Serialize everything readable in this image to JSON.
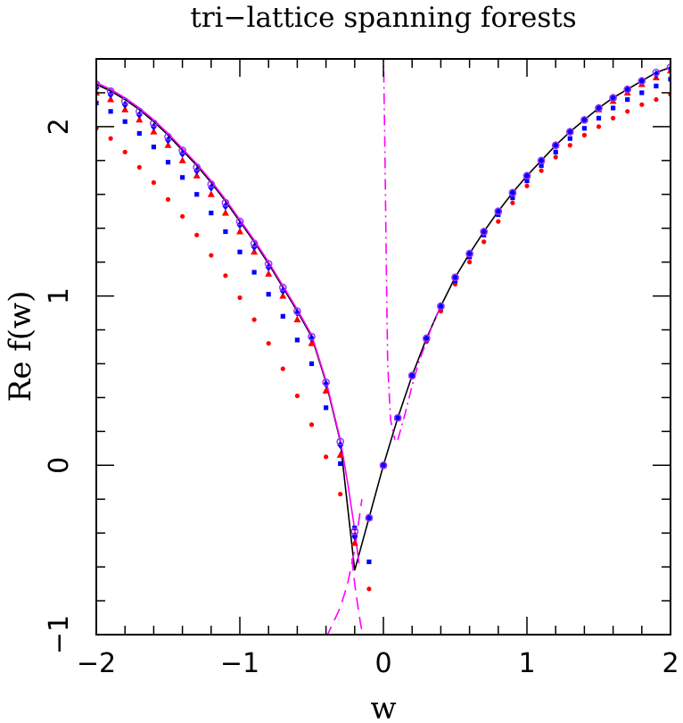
{
  "chart_data": {
    "type": "scatter",
    "title": "tri−lattice spanning forests",
    "xlabel": "w",
    "ylabel": "Re f(w)",
    "xlim": [
      -2,
      2
    ],
    "ylim": [
      -1,
      2.4
    ],
    "xticks": [
      {
        "value": -2,
        "label": "−2"
      },
      {
        "value": -1,
        "label": "−1"
      },
      {
        "value": 0,
        "label": "0"
      },
      {
        "value": 1,
        "label": "1"
      },
      {
        "value": 2,
        "label": "2"
      }
    ],
    "yticks": [
      {
        "value": -1,
        "label": "−1"
      },
      {
        "value": 0,
        "label": "0"
      },
      {
        "value": 1,
        "label": "1"
      },
      {
        "value": 2,
        "label": "2"
      }
    ],
    "x_minor_step": 0.2,
    "y_minor_step": 0.2,
    "grid": false,
    "x": [
      -2.0,
      -1.9,
      -1.8,
      -1.7,
      -1.6,
      -1.5,
      -1.4,
      -1.3,
      -1.2,
      -1.1,
      -1.0,
      -0.9,
      -0.8,
      -0.7,
      -0.6,
      -0.5,
      -0.4,
      -0.3,
      -0.2,
      -0.1,
      0.0,
      0.1,
      0.2,
      0.3,
      0.4,
      0.5,
      0.6,
      0.7,
      0.8,
      0.9,
      1.0,
      1.1,
      1.2,
      1.3,
      1.4,
      1.5,
      1.6,
      1.7,
      1.8,
      1.9,
      2.0
    ],
    "series": [
      {
        "color": "#ff0000",
        "marker": "dot",
        "values": [
          1.99,
          1.93,
          1.85,
          1.76,
          1.67,
          1.57,
          1.47,
          1.36,
          1.24,
          1.12,
          0.99,
          0.86,
          0.72,
          0.57,
          0.41,
          0.24,
          0.05,
          -0.17,
          -0.41,
          -0.73,
          0.0,
          0.28,
          0.52,
          0.73,
          0.91,
          1.07,
          1.2,
          1.32,
          1.44,
          1.55,
          1.65,
          1.74,
          1.82,
          1.89,
          1.95,
          2.0,
          2.05,
          2.09,
          2.13,
          2.16,
          2.19
        ]
      },
      {
        "color": "#0000ff",
        "marker": "square",
        "values": [
          2.14,
          2.09,
          2.03,
          1.96,
          1.88,
          1.79,
          1.7,
          1.6,
          1.49,
          1.38,
          1.26,
          1.14,
          1.01,
          0.88,
          0.74,
          0.6,
          0.34,
          0.01,
          -0.37,
          -0.57,
          0.0,
          0.28,
          0.53,
          0.74,
          0.93,
          1.09,
          1.23,
          1.36,
          1.48,
          1.58,
          1.68,
          1.77,
          1.85,
          1.93,
          1.99,
          2.05,
          2.11,
          2.16,
          2.2,
          2.24,
          2.28
        ]
      },
      {
        "color": "#ff0000",
        "marker": "triangle",
        "values": [
          2.2,
          2.16,
          2.1,
          2.04,
          1.97,
          1.89,
          1.8,
          1.71,
          1.6,
          1.49,
          1.38,
          1.26,
          1.13,
          1.0,
          0.86,
          0.72,
          0.44,
          0.06,
          -0.46,
          -0.31,
          0.0,
          0.28,
          0.53,
          0.75,
          0.94,
          1.11,
          1.25,
          1.38,
          1.5,
          1.61,
          1.71,
          1.8,
          1.89,
          1.97,
          2.04,
          2.1,
          2.15,
          2.2,
          2.25,
          2.29,
          2.33
        ]
      },
      {
        "color": "#0000ff",
        "marker": "diamond",
        "values": [
          2.23,
          2.19,
          2.13,
          2.07,
          2.0,
          1.92,
          1.84,
          1.74,
          1.64,
          1.53,
          1.42,
          1.29,
          1.17,
          1.03,
          0.9,
          0.75,
          0.48,
          0.12,
          -0.42,
          -0.31,
          0.0,
          0.28,
          0.53,
          0.75,
          0.94,
          1.11,
          1.25,
          1.38,
          1.5,
          1.61,
          1.71,
          1.8,
          1.89,
          1.97,
          2.04,
          2.11,
          2.17,
          2.22,
          2.27,
          2.31,
          2.34
        ]
      },
      {
        "color": "#9933ff",
        "marker": "ring",
        "values": [
          2.25,
          2.21,
          2.15,
          2.09,
          2.02,
          1.94,
          1.86,
          1.76,
          1.66,
          1.55,
          1.44,
          1.31,
          1.19,
          1.05,
          0.91,
          0.76,
          0.49,
          0.14,
          -0.39,
          -0.31,
          0.0,
          0.28,
          0.53,
          0.75,
          0.94,
          1.11,
          1.25,
          1.38,
          1.5,
          1.61,
          1.71,
          1.8,
          1.89,
          1.97,
          2.04,
          2.11,
          2.17,
          2.22,
          2.27,
          2.32,
          2.35
        ]
      }
    ],
    "curves": [
      {
        "color": "#000000",
        "style": "solid",
        "x": [
          -2.0,
          -1.9,
          -1.8,
          -1.7,
          -1.6,
          -1.5,
          -1.4,
          -1.3,
          -1.2,
          -1.1,
          -1.0,
          -0.9,
          -0.8,
          -0.7,
          -0.6,
          -0.5,
          -0.4,
          -0.3,
          -0.2,
          -0.1,
          0.0,
          0.1,
          0.2,
          0.3,
          0.4,
          0.5,
          0.6,
          0.7,
          0.8,
          0.9,
          1.0,
          1.1,
          1.2,
          1.3,
          1.4,
          1.5,
          1.6,
          1.7,
          1.8,
          1.9,
          2.0
        ],
        "values": [
          2.25,
          2.21,
          2.16,
          2.1,
          2.03,
          1.95,
          1.86,
          1.77,
          1.67,
          1.56,
          1.44,
          1.32,
          1.19,
          1.05,
          0.91,
          0.76,
          0.49,
          0.14,
          -0.62,
          -0.31,
          0.0,
          0.28,
          0.53,
          0.75,
          0.94,
          1.11,
          1.25,
          1.38,
          1.5,
          1.61,
          1.71,
          1.8,
          1.89,
          1.97,
          2.04,
          2.11,
          2.17,
          2.22,
          2.27,
          2.32,
          2.35
        ]
      },
      {
        "color": "#ff00ff",
        "style": "solid",
        "x": [
          -2.0,
          -1.9,
          -1.8,
          -1.7,
          -1.6,
          -1.5,
          -1.4,
          -1.3,
          -1.2,
          -1.1,
          -1.0,
          -0.9,
          -0.8,
          -0.7,
          -0.6,
          -0.5,
          -0.4,
          -0.3,
          -0.25,
          -0.2,
          -0.17
        ],
        "values": [
          2.26,
          2.22,
          2.17,
          2.11,
          2.04,
          1.96,
          1.87,
          1.78,
          1.68,
          1.57,
          1.45,
          1.33,
          1.2,
          1.06,
          0.92,
          0.77,
          0.5,
          0.15,
          -0.1,
          -0.38,
          -0.58
        ]
      },
      {
        "color": "#ff00ff",
        "style": "dashed",
        "x": [
          -0.4,
          -0.35,
          -0.3,
          -0.25,
          -0.2,
          -0.15
        ],
        "values": [
          -1.02,
          -0.93,
          -0.84,
          -0.7,
          -0.5,
          -0.2
        ]
      },
      {
        "color": "#ff00ff",
        "style": "dashed",
        "x": [
          -0.22,
          -0.2,
          -0.18,
          -0.16,
          -0.14
        ],
        "values": [
          -0.55,
          -0.7,
          -0.82,
          -0.93,
          -1.02
        ]
      },
      {
        "color": "#ff00ff",
        "style": "dashdot",
        "x": [
          0.0,
          0.01,
          0.02,
          0.03,
          0.05,
          0.08
        ],
        "values": [
          2.45,
          1.9,
          1.2,
          0.6,
          0.27,
          0.15
        ]
      },
      {
        "color": "#ff00ff",
        "style": "dashdot",
        "x": [
          0.1,
          0.15,
          0.2,
          0.25,
          0.3,
          0.35,
          0.4
        ],
        "values": [
          0.15,
          0.3,
          0.47,
          0.62,
          0.73,
          0.85,
          0.94
        ]
      }
    ]
  }
}
